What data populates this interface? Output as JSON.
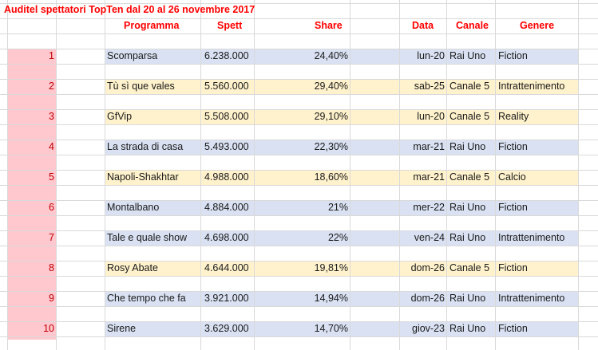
{
  "title": "Auditel spettatori TopTen dal 20 al 26 novembre 2017",
  "headers": {
    "programma": "Programma",
    "spett": "Spett",
    "share": "Share",
    "data": "Data",
    "canale": "Canale",
    "genere": "Genere"
  },
  "colors": {
    "title": "#ff0000",
    "rank_fill": "#ffc7ce",
    "rank_text": "#c00000",
    "rai_band": "#d9e1f2",
    "mediaset_band": "#fff2cc"
  },
  "rows": [
    {
      "rank": "1",
      "programma": "Scomparsa",
      "spett": "6.238.000",
      "share": "24,40%",
      "data": "lun-20",
      "canale": "Rai Uno",
      "genere": "Fiction",
      "band": "blue"
    },
    {
      "rank": "2",
      "programma": "Tù sì que vales",
      "spett": "5.560.000",
      "share": "29,40%",
      "data": "sab-25",
      "canale": "Canale 5",
      "genere": "Intrattenimento",
      "band": "yellow"
    },
    {
      "rank": "3",
      "programma": "GfVip",
      "spett": "5.508.000",
      "share": "29,10%",
      "data": "lun-20",
      "canale": "Canale 5",
      "genere": "Reality",
      "band": "yellow"
    },
    {
      "rank": "4",
      "programma": "La strada di casa",
      "spett": "5.493.000",
      "share": "22,30%",
      "data": "mar-21",
      "canale": "Rai Uno",
      "genere": "Fiction",
      "band": "blue"
    },
    {
      "rank": "5",
      "programma": "Napoli-Shakhtar",
      "spett": "4.988.000",
      "share": "18,60%",
      "data": "mar-21",
      "canale": "Canale 5",
      "genere": "Calcio",
      "band": "yellow"
    },
    {
      "rank": "6",
      "programma": "Montalbano",
      "spett": "4.884.000",
      "share": "21%",
      "data": "mer-22",
      "canale": "Rai Uno",
      "genere": "Fiction",
      "band": "blue"
    },
    {
      "rank": "7",
      "programma": "Tale e quale show",
      "spett": "4.698.000",
      "share": "22%",
      "data": "ven-24",
      "canale": "Rai Uno",
      "genere": "Intrattenimento",
      "band": "blue"
    },
    {
      "rank": "8",
      "programma": "Rosy Abate",
      "spett": "4.644.000",
      "share": "19,81%",
      "data": "dom-26",
      "canale": "Canale 5",
      "genere": "Fiction",
      "band": "yellow"
    },
    {
      "rank": "9",
      "programma": "Che tempo che fa",
      "spett": "3.921.000",
      "share": "14,94%",
      "data": "dom-26",
      "canale": "Rai Uno",
      "genere": "Intrattenimento",
      "band": "blue"
    },
    {
      "rank": "10",
      "programma": "Sirene",
      "spett": "3.629.000",
      "share": "14,70%",
      "data": "giov-23",
      "canale": "Rai Uno",
      "genere": "Fiction",
      "band": "blue"
    }
  ]
}
